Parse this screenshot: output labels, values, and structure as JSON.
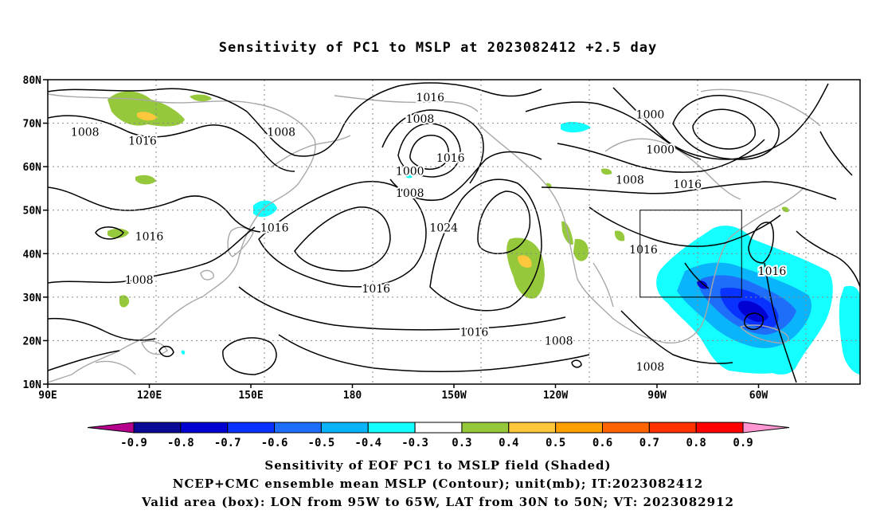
{
  "title": "Sensitivity of PC1 to MSLP at 2023082412 +2.5 day",
  "lat_ticks": [
    "80N",
    "70N",
    "60N",
    "50N",
    "40N",
    "30N",
    "20N",
    "10N"
  ],
  "lon_ticks": [
    "90E",
    "120E",
    "150E",
    "180",
    "150W",
    "120W",
    "90W",
    "60W"
  ],
  "contour_labels": [
    {
      "text": "1008",
      "lon": 101,
      "lat": 68
    },
    {
      "text": "1016",
      "lon": 118,
      "lat": 66
    },
    {
      "text": "1008",
      "lon": 159,
      "lat": 68
    },
    {
      "text": "1016",
      "lon": 120,
      "lat": 44
    },
    {
      "text": "1008",
      "lon": 117,
      "lat": 34
    },
    {
      "text": "1016",
      "lon": 157,
      "lat": 46
    },
    {
      "text": "1016",
      "lon": 187,
      "lat": 32
    },
    {
      "text": "1016",
      "lon": 203,
      "lat": 76
    },
    {
      "text": "1008",
      "lon": 200,
      "lat": 71
    },
    {
      "text": "1000",
      "lon": 197,
      "lat": 59
    },
    {
      "text": "1008",
      "lon": 197,
      "lat": 54
    },
    {
      "text": "1016",
      "lon": 209,
      "lat": 62
    },
    {
      "text": "1024",
      "lon": 207,
      "lat": 46
    },
    {
      "text": "1016",
      "lon": 216,
      "lat": 22
    },
    {
      "text": "1008",
      "lon": 241,
      "lat": 20
    },
    {
      "text": "1000",
      "lon": 268,
      "lat": 72
    },
    {
      "text": "1000",
      "lon": 271,
      "lat": 64
    },
    {
      "text": "1008",
      "lon": 262,
      "lat": 57
    },
    {
      "text": "1016",
      "lon": 279,
      "lat": 56
    },
    {
      "text": "1016",
      "lon": 266,
      "lat": 41
    },
    {
      "text": "1016",
      "lon": 304,
      "lat": 36
    },
    {
      "text": "1008",
      "lon": 268,
      "lat": 14
    }
  ],
  "valid_box": {
    "lon_min": 265,
    "lon_max": 295,
    "lat_min": 30,
    "lat_max": 50
  },
  "colorbar": {
    "labels": [
      "-0.9",
      "-0.8",
      "-0.7",
      "-0.6",
      "-0.5",
      "-0.4",
      "-0.3",
      "0.3",
      "0.4",
      "0.5",
      "0.6",
      "0.7",
      "0.8",
      "0.9"
    ],
    "colors": [
      "#0a0a96",
      "#0000d2",
      "#0a32ff",
      "#1e6efa",
      "#0ab4fa",
      "#14ffff",
      "#ffffff",
      "#96c83c",
      "#ffc83c",
      "#ffa000",
      "#ff6400",
      "#ff3200",
      "#ff0000"
    ],
    "low_end_color": "#b4008c",
    "high_end_color": "#ff96d2"
  },
  "caption_line1": "Sensitivity of EOF PC1 to MSLP field (Shaded)",
  "caption_line2": "NCEP+CMC ensemble mean MSLP (Contour); unit(mb); IT:2023082412",
  "caption_line3": "Valid area (box): LON from 95W to 65W, LAT from 30N to 50N; VT: 2023082912"
}
